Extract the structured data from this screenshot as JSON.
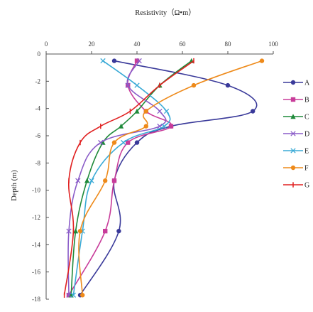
{
  "chart_data": {
    "type": "line",
    "xlabel": "Resistivity（Ω•m）",
    "ylabel": "Depth (m)",
    "xlim": [
      0,
      100
    ],
    "ylim": [
      -18,
      0
    ],
    "x_ticks": [
      0,
      20,
      40,
      60,
      80,
      100
    ],
    "y_ticks": [
      0,
      -2,
      -4,
      -6,
      -8,
      -10,
      -12,
      -14,
      -16,
      -18
    ],
    "x_axis_position": "top",
    "legend_position": "right",
    "grid": false,
    "series": [
      {
        "name": "A",
        "color": "#3a3a9a",
        "marker": "circle",
        "points": [
          [
            30,
            -0.5
          ],
          [
            80,
            -2.3
          ],
          [
            91,
            -4.2
          ],
          [
            55,
            -5.3
          ],
          [
            40,
            -6.5
          ],
          [
            30,
            -9.3
          ],
          [
            32,
            -13.0
          ],
          [
            15,
            -17.7
          ]
        ]
      },
      {
        "name": "B",
        "color": "#c83c9a",
        "marker": "square",
        "points": [
          [
            40,
            -0.5
          ],
          [
            36,
            -2.3
          ],
          [
            44,
            -4.2
          ],
          [
            55,
            -5.3
          ],
          [
            36,
            -6.5
          ],
          [
            30,
            -9.3
          ],
          [
            26,
            -13.0
          ],
          [
            10,
            -17.7
          ]
        ]
      },
      {
        "name": "C",
        "color": "#1f8a3a",
        "marker": "triangle",
        "points": [
          [
            64,
            -0.5
          ],
          [
            50,
            -2.3
          ],
          [
            40,
            -4.2
          ],
          [
            33,
            -5.3
          ],
          [
            25,
            -6.5
          ],
          [
            18,
            -9.3
          ],
          [
            13,
            -13.0
          ],
          [
            11,
            -17.7
          ]
        ]
      },
      {
        "name": "D",
        "color": "#8a5cc8",
        "marker": "x",
        "points": [
          [
            41,
            -0.5
          ],
          [
            36,
            -2.3
          ],
          [
            50,
            -4.2
          ],
          [
            50,
            -5.3
          ],
          [
            24,
            -6.5
          ],
          [
            14,
            -9.3
          ],
          [
            10,
            -13.0
          ],
          [
            10,
            -17.7
          ]
        ]
      },
      {
        "name": "E",
        "color": "#3aaad6",
        "marker": "x",
        "points": [
          [
            25,
            -0.5
          ],
          [
            40,
            -2.3
          ],
          [
            53,
            -4.2
          ],
          [
            52,
            -5.3
          ],
          [
            34,
            -6.5
          ],
          [
            20,
            -9.3
          ],
          [
            16,
            -13.0
          ],
          [
            12,
            -17.7
          ]
        ]
      },
      {
        "name": "F",
        "color": "#ee8a1a",
        "marker": "circle",
        "points": [
          [
            95,
            -0.5
          ],
          [
            65,
            -2.3
          ],
          [
            44,
            -4.2
          ],
          [
            44,
            -5.3
          ],
          [
            30,
            -6.5
          ],
          [
            26,
            -9.3
          ],
          [
            15,
            -13.0
          ],
          [
            16,
            -17.7
          ]
        ]
      },
      {
        "name": "G",
        "color": "#e02020",
        "marker": "bar",
        "points": [
          [
            65,
            -0.5
          ],
          [
            50,
            -2.3
          ],
          [
            37,
            -4.2
          ],
          [
            24,
            -5.3
          ],
          [
            15,
            -6.5
          ],
          [
            10,
            -9.3
          ],
          [
            12,
            -13.0
          ],
          [
            8,
            -17.7
          ]
        ]
      }
    ]
  }
}
